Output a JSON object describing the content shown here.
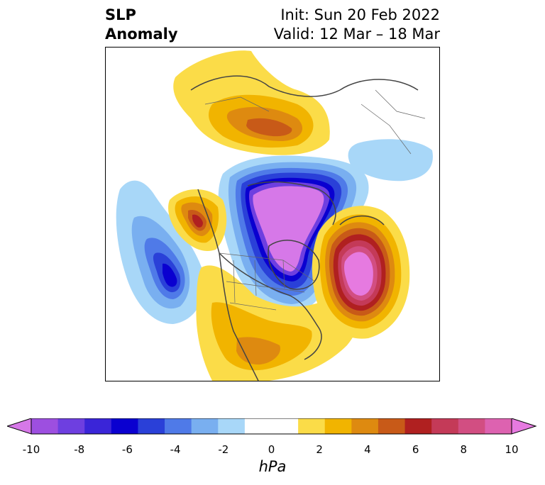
{
  "title": {
    "line1": "SLP",
    "line2": "Anomaly"
  },
  "info": {
    "init": "Init: Sun 20 Feb 2022",
    "valid": "Valid: 12 Mar – 18 Mar"
  },
  "colorbar": {
    "unit": "hPa",
    "ticks": [
      "-10",
      "-8",
      "-6",
      "-4",
      "-2",
      "0",
      "2",
      "4",
      "6",
      "8",
      "10"
    ],
    "colors": [
      "#9d4fe0",
      "#6e3fe0",
      "#3a25d8",
      "#0a00d0",
      "#2a40d8",
      "#4f7ae8",
      "#79aff0",
      "#a8d7f8",
      "#ffffff",
      "#ffffff",
      "#fbdc48",
      "#f1b400",
      "#de8a10",
      "#c85a18",
      "#b02020",
      "#c43a58",
      "#d24e82",
      "#dd62b0"
    ],
    "under_color": "#d678e8",
    "over_color": "#e67ae0"
  },
  "map": {
    "anomaly_centers": [
      {
        "region": "Arctic / Canadian Archipelago",
        "sign": "negative",
        "peak_hpa": -10
      },
      {
        "region": "North Pacific",
        "sign": "negative",
        "peak_hpa": -6
      },
      {
        "region": "North Atlantic",
        "sign": "positive",
        "peak_hpa": 10
      },
      {
        "region": "Northern Eurasia",
        "sign": "positive",
        "peak_hpa": 5
      },
      {
        "region": "Pacific Northwest coast",
        "sign": "positive",
        "peak_hpa": 6
      },
      {
        "region": "United States / Mexico",
        "sign": "positive",
        "peak_hpa": 3
      }
    ]
  }
}
